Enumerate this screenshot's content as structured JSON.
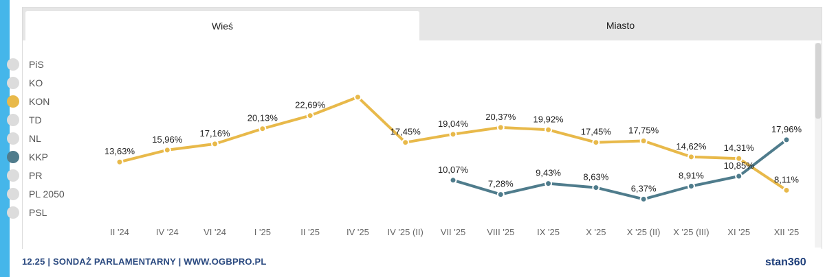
{
  "tabs": [
    {
      "label": "Wieś",
      "active": true
    },
    {
      "label": "Miasto",
      "active": false
    }
  ],
  "legend": [
    {
      "label": "PiS",
      "color": "#dcdcdc",
      "active": false
    },
    {
      "label": "KO",
      "color": "#dcdcdc",
      "active": false
    },
    {
      "label": "KON",
      "color": "#e8b94a",
      "active": true
    },
    {
      "label": "TD",
      "color": "#dcdcdc",
      "active": false
    },
    {
      "label": "NL",
      "color": "#dcdcdc",
      "active": false
    },
    {
      "label": "KKP",
      "color": "#4f7c8c",
      "active": true
    },
    {
      "label": "PR",
      "color": "#dcdcdc",
      "active": false
    },
    {
      "label": "PL 2050",
      "color": "#dcdcdc",
      "active": false
    },
    {
      "label": "PSL",
      "color": "#dcdcdc",
      "active": false
    }
  ],
  "chart_data": {
    "type": "line",
    "categories": [
      "II '24",
      "IV '24",
      "VI '24",
      "I '25",
      "II '25",
      "IV '25",
      "IV '25 (II)",
      "VII '25",
      "VIII '25",
      "IX '25",
      "X '25",
      "X '25 (II)",
      "X '25 (III)",
      "XI '25",
      "XII '25"
    ],
    "series": [
      {
        "name": "KON",
        "color": "#e8b94a",
        "values": [
          13.63,
          15.96,
          17.16,
          20.13,
          22.69,
          26.3,
          17.45,
          19.04,
          20.37,
          19.92,
          17.45,
          17.75,
          14.62,
          14.31,
          8.11
        ],
        "labels": [
          "13,63%",
          "15,96%",
          "17,16%",
          "20,13%",
          "22,69%",
          "",
          "17,45%",
          "19,04%",
          "20,37%",
          "19,92%",
          "17,45%",
          "17,75%",
          "14,62%",
          "14,31%",
          "8,11%"
        ]
      },
      {
        "name": "KKP",
        "color": "#4f7c8c",
        "values": [
          null,
          null,
          null,
          null,
          null,
          null,
          null,
          10.07,
          7.28,
          9.43,
          8.63,
          6.37,
          8.91,
          10.85,
          17.96
        ],
        "labels": [
          "",
          "",
          "",
          "",
          "",
          "",
          "",
          "10,07%",
          "7,28%",
          "9,43%",
          "8,63%",
          "6,37%",
          "8,91%",
          "10,85%",
          "17,96%"
        ]
      }
    ],
    "ylim": [
      0,
      30
    ],
    "title": "",
    "xlabel": "",
    "ylabel": ""
  },
  "footer": {
    "text": "12.25 | SONDAŻ PARLAMENTARNY | WWW.OGBPRO.PL",
    "logo": "stan360"
  }
}
